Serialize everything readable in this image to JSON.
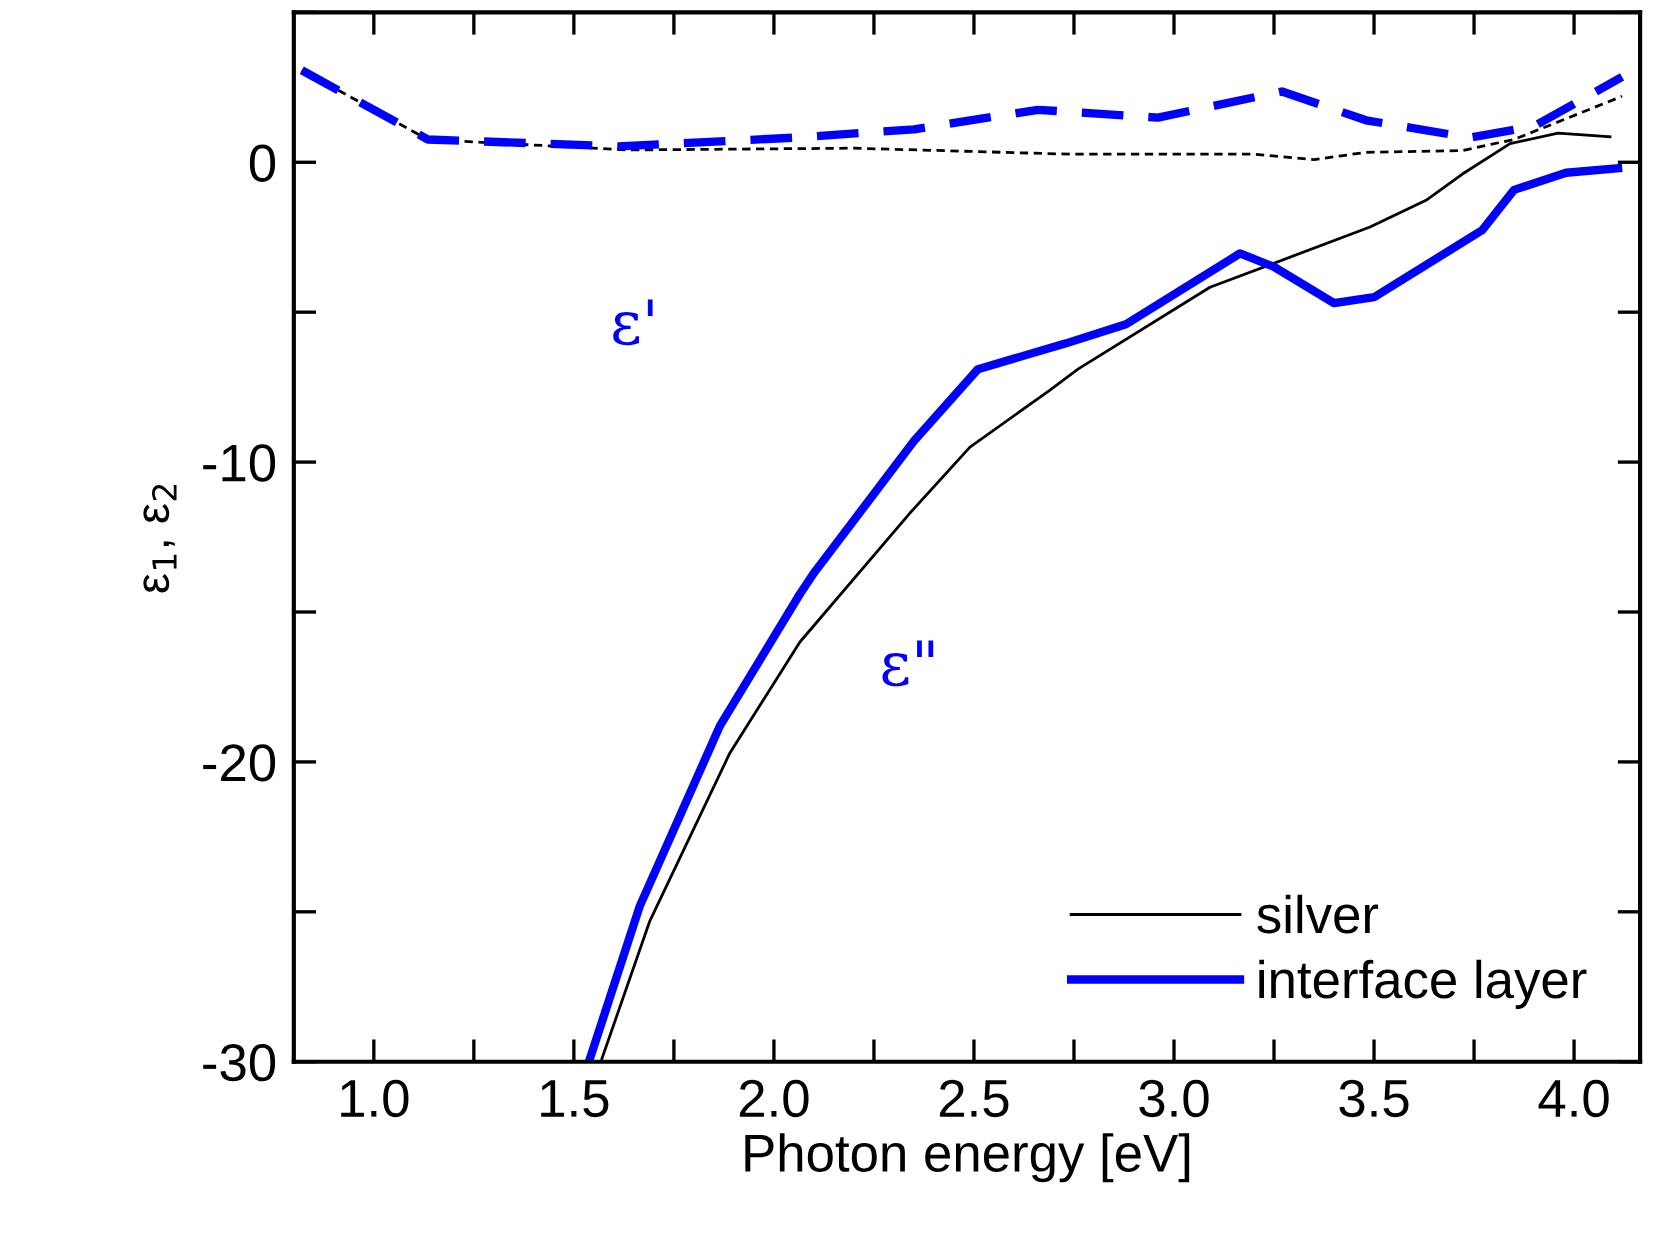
{
  "chart_data": {
    "type": "line",
    "xlabel": "Photon energy [eV]",
    "ylabel": "ε$_{1}$, ε$_{2}$",
    "xlim": [
      0.8,
      4.165
    ],
    "ylim": [
      -30,
      5
    ],
    "xticks": [
      {
        "value": 1.0,
        "label": "1.0"
      },
      {
        "value": 1.25,
        "label": null
      },
      {
        "value": 1.5,
        "label": "1.5"
      },
      {
        "value": 1.75,
        "label": null
      },
      {
        "value": 2.0,
        "label": "2.0"
      },
      {
        "value": 2.25,
        "label": null
      },
      {
        "value": 2.5,
        "label": "2.5"
      },
      {
        "value": 2.75,
        "label": null
      },
      {
        "value": 3.0,
        "label": "3.0"
      },
      {
        "value": 3.25,
        "label": null
      },
      {
        "value": 3.5,
        "label": "3.5"
      },
      {
        "value": 3.75,
        "label": null
      },
      {
        "value": 4.0,
        "label": "4.0"
      }
    ],
    "yticks": [
      {
        "value": 5,
        "label": null
      },
      0,
      {
        "value": -5,
        "label": null
      },
      -10,
      {
        "value": -15,
        "label": null
      },
      -20,
      {
        "value": -25,
        "label": null
      },
      -30
    ],
    "legend": "bottom right",
    "grid": false,
    "marker": "none",
    "annotations": [
      "ε'",
      "ε\""
    ],
    "series": [
      {
        "name": "silver",
        "color": "#000000",
        "line_style": "solid",
        "x": [
          1.57,
          1.69,
          1.89,
          2.065,
          2.34,
          2.49,
          2.69,
          2.76,
          3.09,
          3.49,
          3.63,
          3.72,
          3.84,
          3.96,
          4.09
        ],
        "values": [
          -29.9,
          -25.3,
          -19.7,
          -16.0,
          -11.7,
          -9.5,
          -7.6,
          -6.9,
          -4.17,
          -2.16,
          -1.27,
          -0.4,
          0.62,
          0.97,
          0.85
        ]
      },
      {
        "name": "interface layer",
        "color": "#0000ff",
        "line_style": "solid",
        "x": [
          1.54,
          1.665,
          1.865,
          2.065,
          2.1,
          2.35,
          2.51,
          2.73,
          2.88,
          3.165,
          3.25,
          3.4,
          3.5,
          3.77,
          3.85,
          3.98,
          4.11
        ],
        "values": [
          -29.9,
          -24.8,
          -18.8,
          -14.4,
          -13.7,
          -9.3,
          -6.9,
          -6.04,
          -5.4,
          -3.04,
          -3.49,
          -4.7,
          -4.5,
          -2.27,
          -0.92,
          -0.35,
          -0.2
        ]
      },
      {
        "color": "#000000",
        "line_style": "dashed",
        "x": [
          0.82,
          1.135,
          1.635,
          2.2,
          2.74,
          3.2,
          3.35,
          3.48,
          3.72,
          3.85,
          4.12
        ],
        "values": [
          3.07,
          0.76,
          0.41,
          0.47,
          0.27,
          0.27,
          0.09,
          0.33,
          0.39,
          0.76,
          2.2
        ]
      },
      {
        "color": "#0000ff",
        "line_style": "dashed",
        "x": [
          0.82,
          1.135,
          1.61,
          2.05,
          2.35,
          2.66,
          2.96,
          3.27,
          3.48,
          3.74,
          3.9,
          4.12
        ],
        "values": [
          3.07,
          0.76,
          0.53,
          0.82,
          1.1,
          1.75,
          1.49,
          2.36,
          1.4,
          0.82,
          1.2,
          2.85
        ]
      }
    ]
  }
}
